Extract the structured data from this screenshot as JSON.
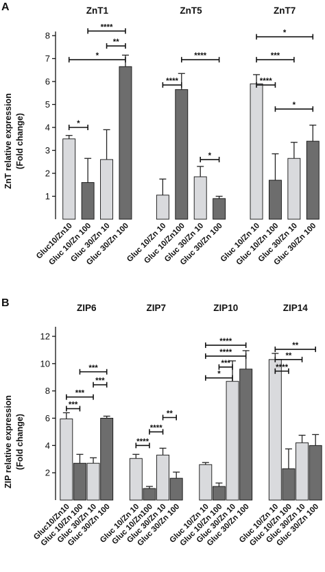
{
  "colors": {
    "light": "#d9dadd",
    "dark": "#6d6d6d"
  },
  "chart_data": [
    {
      "type": "bar",
      "panel": "A",
      "ylabel_line1": "ZnT relative expression",
      "ylabel_line2": "(Fold change)",
      "ylim": [
        0,
        8
      ],
      "yticks": [
        1,
        2,
        3,
        4,
        5,
        6,
        7,
        8
      ],
      "categories": [
        "Gluc10/Zn10",
        "Gluc 10/Zn 100",
        "Gluc 30/Zn 10",
        "Gluc 30/Zn 100"
      ],
      "groups": [
        {
          "name": "ZnT1",
          "categories": [
            "Gluc10/Zn10",
            "Gluc 10/Zn 100",
            "Gluc 30/Zn 10",
            "Gluc 30/Zn 100"
          ],
          "values": [
            3.5,
            1.6,
            2.6,
            6.65
          ],
          "errors": [
            0.15,
            1.05,
            1.3,
            0.5
          ],
          "brackets": [
            {
              "from": 0,
              "to": 1,
              "y": 4.0,
              "label": "*"
            },
            {
              "from": 1,
              "to": 3,
              "y": 8.2,
              "label": "****"
            },
            {
              "from": 2,
              "to": 3,
              "y": 7.55,
              "label": "**"
            },
            {
              "from": 0,
              "to": 3,
              "y": 6.95,
              "label": "*"
            }
          ]
        },
        {
          "name": "ZnT5",
          "categories": [
            "Gluc 10/Zn 10",
            "Gluc 10/Zn100",
            "Gluc 30/Zn 10",
            "Gluc 30/Zn 100"
          ],
          "values": [
            1.05,
            5.65,
            1.85,
            0.9
          ],
          "errors": [
            0.7,
            0.7,
            0.45,
            0.1
          ],
          "brackets": [
            {
              "from": 0,
              "to": 1,
              "y": 5.85,
              "label": "****"
            },
            {
              "from": 1,
              "to": 3,
              "y": 6.95,
              "label": "****"
            },
            {
              "from": 2,
              "to": 3,
              "y": 2.6,
              "label": "*"
            }
          ]
        },
        {
          "name": "ZnT7",
          "categories": [
            "Gluc 10/Zn 10",
            "Gluc 10/Zn 100",
            "Gluc 30/Zn 10",
            "Gluc 30/Zn 100"
          ],
          "values": [
            5.9,
            1.7,
            2.65,
            3.4
          ],
          "errors": [
            0.4,
            1.15,
            0.7,
            0.7
          ],
          "brackets": [
            {
              "from": 0,
              "to": 1,
              "y": 5.85,
              "label": "****"
            },
            {
              "from": 0,
              "to": 2,
              "y": 6.95,
              "label": "***"
            },
            {
              "from": 0,
              "to": 3,
              "y": 7.95,
              "label": "*"
            },
            {
              "from": 1,
              "to": 3,
              "y": 4.8,
              "label": "*"
            }
          ]
        }
      ]
    },
    {
      "type": "bar",
      "panel": "B",
      "ylabel_line1": "ZIP relative expression",
      "ylabel_line2": "(Fold change)",
      "ylim": [
        0,
        12.4
      ],
      "yticks": [
        2,
        4,
        6,
        8,
        10,
        12
      ],
      "categories": [
        "Gluc10/Zn10",
        "Gluc 10/Zn 100",
        "Gluc 30/Zn 10",
        "Gluc 30/Zn 100"
      ],
      "groups": [
        {
          "name": "ZIP6",
          "categories": [
            "Gluc10/Zn10",
            "Gluc 10/Zn 100",
            "Gluc 30/Zn 10",
            "Gluc 30/Zn 100"
          ],
          "values": [
            5.95,
            2.7,
            2.7,
            6.0
          ],
          "errors": [
            0.45,
            0.65,
            0.4,
            0.15
          ],
          "brackets": [
            {
              "from": 0,
              "to": 1,
              "y": 6.7,
              "label": "***"
            },
            {
              "from": 0,
              "to": 2,
              "y": 7.55,
              "label": "***"
            },
            {
              "from": 2,
              "to": 3,
              "y": 8.45,
              "label": "***"
            },
            {
              "from": 1,
              "to": 3,
              "y": 9.4,
              "label": "***"
            }
          ]
        },
        {
          "name": "ZIP7",
          "categories": [
            "Gluc 10/Zn 10",
            "Gluc 10/Zn100",
            "Gluc 30/Zn 10",
            "Gluc 30/Zn 100"
          ],
          "values": [
            3.05,
            0.85,
            3.3,
            1.6
          ],
          "errors": [
            0.3,
            0.15,
            0.5,
            0.45
          ],
          "brackets": [
            {
              "from": 0,
              "to": 1,
              "y": 4.0,
              "label": "****"
            },
            {
              "from": 1,
              "to": 2,
              "y": 5.0,
              "label": "****"
            },
            {
              "from": 2,
              "to": 3,
              "y": 6.05,
              "label": "**"
            }
          ]
        },
        {
          "name": "ZIP10",
          "categories": [
            "Gluc 10/Zn 10",
            "Gluc 10/Zn 100",
            "Gluc 30/Zn 10",
            "Gluc 30/Zn 100"
          ],
          "values": [
            2.6,
            1.0,
            8.7,
            9.6
          ],
          "errors": [
            0.15,
            0.25,
            1.5,
            1.35
          ],
          "brackets": [
            {
              "from": 0,
              "to": 2,
              "y": 8.95,
              "label": "*"
            },
            {
              "from": 1,
              "to": 2,
              "y": 9.75,
              "label": "***"
            },
            {
              "from": 0,
              "to": 3,
              "y": 10.55,
              "label": "****"
            },
            {
              "from": 0,
              "to": 3,
              "y": 11.35,
              "label": "****"
            }
          ]
        },
        {
          "name": "ZIP14",
          "categories": [
            "Gluc 10/Zn 10",
            "Gluc 10/Zn 100",
            "Gluc 30/Zn 10",
            "Gluc 30/Zn 100"
          ],
          "values": [
            10.3,
            2.3,
            4.2,
            4.0
          ],
          "errors": [
            0.45,
            1.45,
            0.55,
            0.8
          ],
          "brackets": [
            {
              "from": 0,
              "to": 1,
              "y": 9.45,
              "label": "****"
            },
            {
              "from": 0,
              "to": 2,
              "y": 10.3,
              "label": "**"
            },
            {
              "from": 0,
              "to": 3,
              "y": 11.05,
              "label": "**"
            }
          ]
        }
      ]
    }
  ]
}
